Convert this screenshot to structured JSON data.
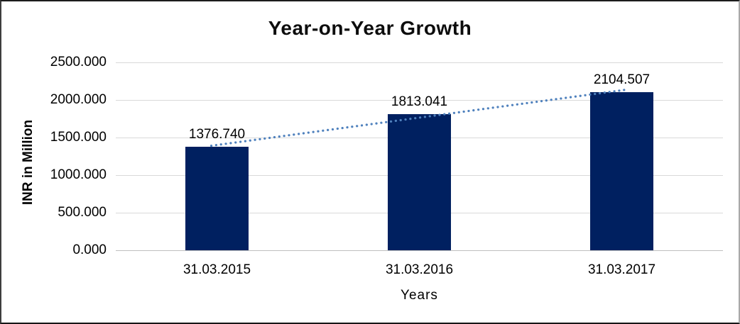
{
  "chart_data": {
    "type": "bar",
    "title": "Year-on-Year Growth",
    "xlabel": "Years",
    "ylabel": "INR in Million",
    "categories": [
      "31.03.2015",
      "31.03.2016",
      "31.03.2017"
    ],
    "values": [
      1376.74,
      1813.041,
      2104.507
    ],
    "data_labels": [
      "1376.740",
      "1813.041",
      "2104.507"
    ],
    "ylim": [
      0,
      2500
    ],
    "ytick_step": 500,
    "ytick_labels": [
      "0.000",
      "500.000",
      "1000.000",
      "1500.000",
      "2000.000",
      "2500.000"
    ],
    "grid": true,
    "legend": "none",
    "colors": {
      "bar": "#002060",
      "trendline": "#4f81bd",
      "gridline": "#d9d9d9",
      "axis_line": "#bfbfbf",
      "text": "#000000"
    },
    "trendline": {
      "kind": "linear",
      "style": "dotted"
    }
  }
}
